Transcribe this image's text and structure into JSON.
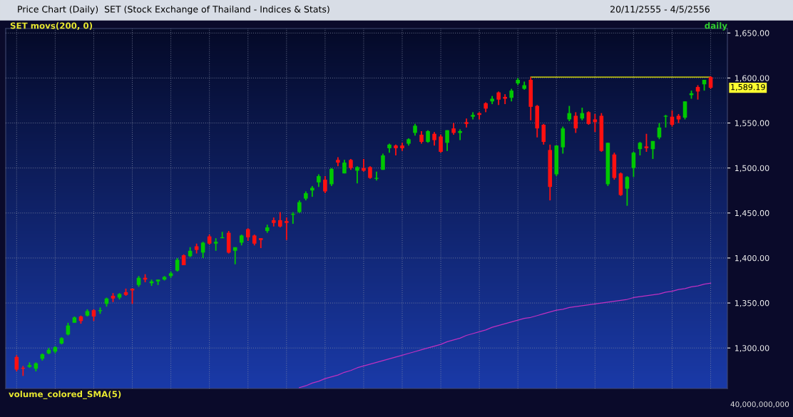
{
  "chart_data": {
    "type": "candlestick",
    "title": "Price Chart (Daily)  SET (Stock Exchange of Thailand - Indices & Stats)",
    "subtitle": "20/11/2555 - 4/5/2556",
    "categories": [
      null,
      null,
      null,
      null,
      null,
      null,
      null,
      null,
      null,
      null,
      null,
      null,
      null,
      null,
      null,
      null,
      null,
      null,
      null,
      null,
      null,
      null,
      null,
      null,
      null,
      null,
      null,
      null,
      null,
      null,
      null,
      null,
      null,
      null,
      null,
      null,
      null,
      null,
      null,
      null,
      null,
      null,
      null,
      null,
      null,
      null,
      null,
      null,
      null,
      null,
      null,
      null,
      null,
      null,
      null,
      null,
      null,
      null,
      null,
      null,
      null,
      null,
      null,
      null,
      null,
      null,
      null,
      null,
      null,
      null,
      null,
      null,
      null,
      null,
      null,
      null,
      null,
      null,
      null,
      null,
      null,
      null,
      null,
      null,
      null,
      null,
      null,
      null,
      null,
      null,
      null,
      null,
      null,
      null,
      null,
      null,
      null,
      null,
      null,
      null,
      null,
      null,
      null,
      null,
      null,
      null,
      null,
      null,
      null
    ],
    "ohlc": [
      [
        1290,
        1292,
        1274,
        1276
      ],
      [
        1278,
        1280,
        1269,
        1277
      ],
      [
        1279,
        1284,
        1278,
        1281
      ],
      [
        1277,
        1284,
        1274,
        1283
      ],
      [
        1288,
        1294,
        1286,
        1293
      ],
      [
        1294,
        1300,
        1293,
        1298
      ],
      [
        1296,
        1302,
        1294,
        1301
      ],
      [
        1305,
        1312,
        1304,
        1311
      ],
      [
        1315,
        1328,
        1314,
        1325
      ],
      [
        1328,
        1335,
        1328,
        1334
      ],
      [
        1335,
        1336,
        1327,
        1330
      ],
      [
        1336,
        1343,
        1335,
        1341
      ],
      [
        1342,
        1343,
        1330,
        1335
      ],
      [
        1341,
        1345,
        1338,
        1342
      ],
      [
        1349,
        1356,
        1346,
        1355
      ],
      [
        1358,
        1361,
        1351,
        1355
      ],
      [
        1356,
        1361,
        1354,
        1360
      ],
      [
        1362,
        1366,
        1358,
        1359
      ],
      [
        1366,
        1366,
        1349,
        1364
      ],
      [
        1370,
        1380,
        1368,
        1378
      ],
      [
        1378,
        1382,
        1373,
        1376
      ],
      [
        1372,
        1376,
        1369,
        1374
      ],
      [
        1374,
        1376,
        1370,
        1376
      ],
      [
        1376,
        1380,
        1375,
        1379
      ],
      [
        1380,
        1385,
        1378,
        1383
      ],
      [
        1386,
        1400,
        1385,
        1398
      ],
      [
        1403,
        1404,
        1392,
        1392
      ],
      [
        1402,
        1412,
        1401,
        1408
      ],
      [
        1413,
        1416,
        1405,
        1409
      ],
      [
        1406,
        1418,
        1400,
        1417
      ],
      [
        1424,
        1426,
        1415,
        1416
      ],
      [
        1416,
        1422,
        1408,
        1418
      ],
      [
        1422,
        1429,
        1422,
        1423
      ],
      [
        1428,
        1430,
        1405,
        1406
      ],
      [
        1408,
        1412,
        1393,
        1412
      ],
      [
        1417,
        1426,
        1414,
        1425
      ],
      [
        1432,
        1433,
        1419,
        1423
      ],
      [
        1425,
        1426,
        1414,
        1416
      ],
      [
        1422,
        1422,
        1411,
        1420
      ],
      [
        1430,
        1437,
        1428,
        1434
      ],
      [
        1442,
        1445,
        1435,
        1439
      ],
      [
        1442,
        1451,
        1434,
        1435
      ],
      [
        1441,
        1445,
        1420,
        1439
      ],
      [
        1448,
        1451,
        1438,
        1449
      ],
      [
        1451,
        1464,
        1450,
        1462
      ],
      [
        1466,
        1474,
        1464,
        1472
      ],
      [
        1475,
        1480,
        1468,
        1478
      ],
      [
        1484,
        1493,
        1479,
        1491
      ],
      [
        1487,
        1491,
        1472,
        1474
      ],
      [
        1482,
        1500,
        1480,
        1499
      ],
      [
        1509,
        1512,
        1502,
        1506
      ],
      [
        1494,
        1509,
        1494,
        1506
      ],
      [
        1509,
        1510,
        1498,
        1500
      ],
      [
        1497,
        1502,
        1483,
        1501
      ],
      [
        1500,
        1510,
        1496,
        1497
      ],
      [
        1501,
        1502,
        1488,
        1489
      ],
      [
        1488,
        1496,
        1486,
        1489
      ],
      [
        1498,
        1516,
        1498,
        1514
      ],
      [
        1522,
        1527,
        1517,
        1526
      ],
      [
        1525,
        1526,
        1514,
        1522
      ],
      [
        1525,
        1528,
        1519,
        1522
      ],
      [
        1527,
        1533,
        1525,
        1532
      ],
      [
        1539,
        1549,
        1536,
        1547
      ],
      [
        1537,
        1541,
        1527,
        1529
      ],
      [
        1529,
        1542,
        1528,
        1541
      ],
      [
        1538,
        1540,
        1525,
        1531
      ],
      [
        1535,
        1537,
        1517,
        1518
      ],
      [
        1528,
        1542,
        1519,
        1542
      ],
      [
        1544,
        1550,
        1537,
        1539
      ],
      [
        1539,
        1543,
        1531,
        1541
      ],
      [
        1551,
        1555,
        1545,
        1549
      ],
      [
        1557,
        1562,
        1554,
        1559
      ],
      [
        1561,
        1562,
        1554,
        1559
      ],
      [
        1572,
        1573,
        1562,
        1566
      ],
      [
        1574,
        1580,
        1571,
        1577
      ],
      [
        1584,
        1585,
        1570,
        1576
      ],
      [
        1579,
        1582,
        1571,
        1577
      ],
      [
        1578,
        1588,
        1574,
        1586
      ],
      [
        1594,
        1600,
        1592,
        1598
      ],
      [
        1588,
        1596,
        1587,
        1592
      ],
      [
        1598,
        1601,
        1553,
        1568
      ],
      [
        1569,
        1570,
        1534,
        1544
      ],
      [
        1548,
        1549,
        1526,
        1529
      ],
      [
        1520,
        1526,
        1464,
        1479
      ],
      [
        1493,
        1525,
        1491,
        1525
      ],
      [
        1523,
        1546,
        1516,
        1544
      ],
      [
        1554,
        1569,
        1552,
        1561
      ],
      [
        1558,
        1562,
        1539,
        1544
      ],
      [
        1555,
        1567,
        1553,
        1561
      ],
      [
        1562,
        1563,
        1548,
        1549
      ],
      [
        1554,
        1560,
        1540,
        1551
      ],
      [
        1558,
        1561,
        1518,
        1519
      ],
      [
        1482,
        1528,
        1480,
        1528
      ],
      [
        1515,
        1517,
        1487,
        1489
      ],
      [
        1494,
        1495,
        1469,
        1470
      ],
      [
        1477,
        1491,
        1458,
        1490
      ],
      [
        1500,
        1518,
        1490,
        1517
      ],
      [
        1521,
        1529,
        1514,
        1528
      ],
      [
        1524,
        1538,
        1518,
        1522
      ],
      [
        1521,
        1530,
        1510,
        1530
      ],
      [
        1534,
        1550,
        1532,
        1545
      ],
      [
        1557,
        1559,
        1545,
        1558
      ],
      [
        1557,
        1564,
        1546,
        1548
      ],
      [
        1558,
        1560,
        1550,
        1554
      ],
      [
        1556,
        1574,
        1554,
        1574
      ],
      [
        1581,
        1586,
        1577,
        1583
      ],
      [
        1590,
        1592,
        1576,
        1585
      ],
      [
        1593,
        1598,
        1586,
        1598
      ],
      [
        1601,
        1602,
        1588,
        1589.19
      ]
    ],
    "colors": [
      "#ff1010",
      "#ff1010",
      "#00c800",
      "#00c800",
      "#00c800",
      "#00c800",
      "#00c800",
      "#00c800",
      "#00c800",
      "#00c800",
      "#ff1010",
      "#00c800",
      "#ff1010",
      "#00c800",
      "#00c800",
      "#ff1010",
      "#00c800",
      "#ff1010",
      "#ff1010",
      "#00c800",
      "#ff1010",
      "#00c800",
      "#00c800",
      "#00c800",
      "#00c800",
      "#00c800",
      "#ff1010",
      "#00c800",
      "#ff1010",
      "#00c800",
      "#ff1010",
      "#00c800",
      "#00c800",
      "#ff1010",
      "#00c800",
      "#00c800",
      "#ff1010",
      "#ff1010",
      "#ff1010",
      "#00c800",
      "#ff1010",
      "#ff1010",
      "#ff1010",
      "#00c800",
      "#00c800",
      "#00c800",
      "#00c800",
      "#00c800",
      "#ff1010",
      "#00c800",
      "#ff1010",
      "#00c800",
      "#ff1010",
      "#00c800",
      "#ff1010",
      "#ff1010",
      "#00c800",
      "#00c800",
      "#00c800",
      "#ff1010",
      "#ff1010",
      "#00c800",
      "#00c800",
      "#ff1010",
      "#00c800",
      "#ff1010",
      "#ff1010",
      "#00c800",
      "#ff1010",
      "#00c800",
      "#ff1010",
      "#00c800",
      "#ff1010",
      "#ff1010",
      "#00c800",
      "#ff1010",
      "#ff1010",
      "#00c800",
      "#00c800",
      "#00c800",
      "#ff1010",
      "#ff1010",
      "#ff1010",
      "#ff1010",
      "#00c800",
      "#00c800",
      "#00c800",
      "#ff1010",
      "#00c800",
      "#ff1010",
      "#ff1010",
      "#ff1010",
      "#00c800",
      "#ff1010",
      "#ff1010",
      "#00c800",
      "#00c800",
      "#00c800",
      "#ff1010",
      "#00c800",
      "#00c800",
      "#00c800",
      "#ff1010",
      "#ff1010",
      "#00c800",
      "#00c800",
      "#ff1010",
      "#00c800",
      "#ff1010"
    ],
    "series": [
      {
        "type": "line",
        "color": "#c030c0",
        "values": [
          null,
          null,
          null,
          null,
          null,
          null,
          null,
          null,
          null,
          null,
          null,
          null,
          null,
          null,
          null,
          null,
          null,
          null,
          null,
          null,
          null,
          null,
          null,
          null,
          null,
          null,
          null,
          null,
          null,
          null,
          null,
          null,
          null,
          null,
          null,
          null,
          null,
          null,
          null,
          null,
          null,
          null,
          null,
          null,
          1256,
          1258,
          1261,
          1263,
          1266,
          1268,
          1270,
          1273,
          1275,
          1278,
          1280,
          1282,
          1284,
          1286,
          1288,
          1290,
          1292,
          1294,
          1296,
          1298,
          1300,
          1302,
          1304,
          1307,
          1309,
          1311,
          1314,
          1316,
          1318,
          1320,
          1323,
          1325,
          1327,
          1329,
          1331,
          1333,
          1334,
          1336,
          1338,
          1340,
          1342,
          1343,
          1345,
          1346,
          1347,
          1348,
          1349,
          1350,
          1351,
          1352,
          1353,
          1354,
          1356,
          1357,
          1358,
          1359,
          1360,
          1362,
          1363,
          1365,
          1366,
          1368,
          1369,
          1371,
          1372
        ]
      },
      {
        "type": "line",
        "color": "#f0f000",
        "values": [
          null,
          null,
          null,
          null,
          null,
          null,
          null,
          null,
          null,
          null,
          null,
          null,
          null,
          null,
          null,
          null,
          null,
          null,
          null,
          null,
          null,
          null,
          null,
          null,
          null,
          null,
          null,
          null,
          null,
          null,
          null,
          null,
          null,
          null,
          null,
          null,
          null,
          null,
          null,
          null,
          null,
          null,
          null,
          null,
          null,
          null,
          null,
          null,
          null,
          null,
          null,
          null,
          null,
          null,
          null,
          null,
          null,
          null,
          null,
          null,
          null,
          null,
          null,
          null,
          null,
          null,
          null,
          null,
          null,
          null,
          null,
          null,
          null,
          null,
          null,
          null,
          null,
          null,
          null,
          null,
          1601,
          1601,
          1601,
          1601,
          1601,
          1601,
          1601,
          1601,
          1601,
          1601,
          1601,
          1601,
          1601,
          1601,
          1601,
          1601,
          1601,
          1601,
          1601,
          1601,
          1601,
          1601,
          1601,
          1601,
          1601,
          1601,
          1601,
          1601,
          1601
        ]
      }
    ],
    "ylim": [
      1255,
      1655
    ],
    "yticks": [
      {
        "value": 1300,
        "label": "1,300.00"
      },
      {
        "value": 1350,
        "label": "1,350.00"
      },
      {
        "value": 1400,
        "label": "1,400.00"
      },
      {
        "value": 1450,
        "label": "1,450.00"
      },
      {
        "value": 1500,
        "label": "1,500.00"
      },
      {
        "value": 1550,
        "label": "1,550.00"
      },
      {
        "value": 1600,
        "label": "1,600.00"
      },
      {
        "value": 1650,
        "label": "1,650.00"
      }
    ],
    "tick_labels": "y",
    "grid": true,
    "annotations": [
      "SET movs(200, 0)",
      "daily",
      "volume_colored_SMA(5)",
      "40,000,000,000",
      "1,589.19"
    ]
  }
}
